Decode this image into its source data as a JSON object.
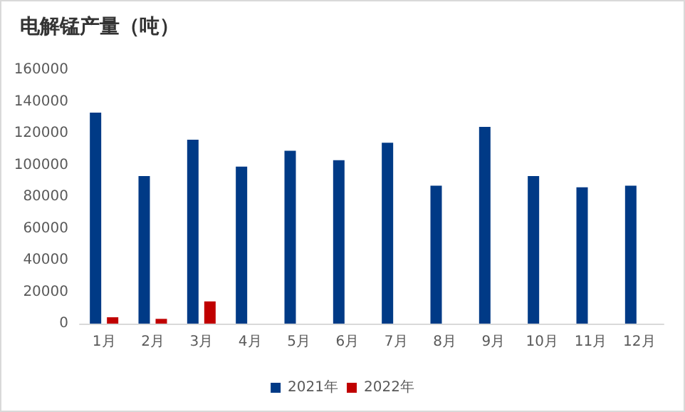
{
  "chart_data": {
    "type": "bar",
    "title": "电解锰产量（吨）",
    "categories": [
      "1月",
      "2月",
      "3月",
      "4月",
      "5月",
      "6月",
      "7月",
      "8月",
      "9月",
      "10月",
      "11月",
      "12月"
    ],
    "series": [
      {
        "name": "2021年",
        "color": "#003a86",
        "values": [
          133000,
          93000,
          116000,
          99000,
          109000,
          103000,
          114000,
          87000,
          124000,
          93000,
          86000,
          87000
        ]
      },
      {
        "name": "2022年",
        "color": "#c00000",
        "values": [
          4000,
          3000,
          14000,
          null,
          null,
          null,
          null,
          null,
          null,
          null,
          null,
          null
        ]
      }
    ],
    "ylim": [
      0,
      160000
    ],
    "yticks": [
      0,
      20000,
      40000,
      60000,
      80000,
      100000,
      120000,
      140000,
      160000
    ],
    "grid": false,
    "legend": "bottom"
  }
}
